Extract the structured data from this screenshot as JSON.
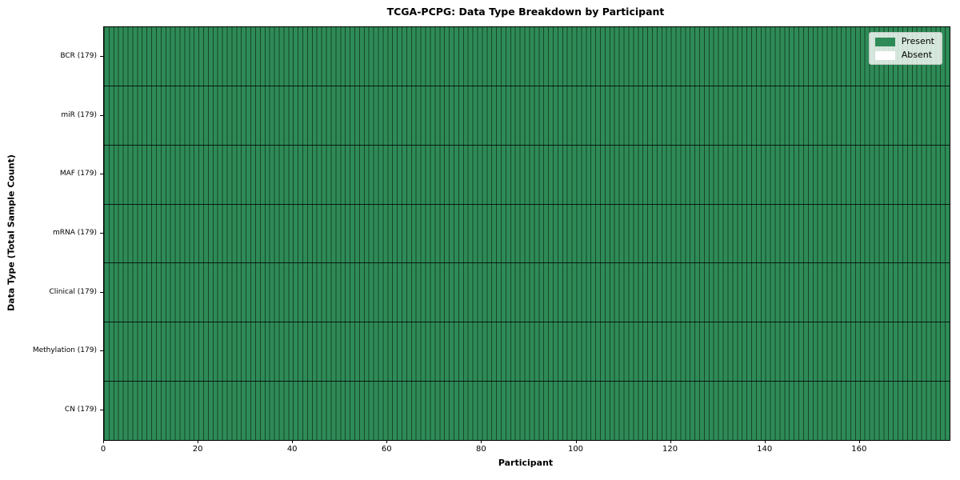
{
  "chart_data": {
    "type": "heatmap",
    "title": "TCGA-PCPG: Data Type Breakdown by Participant",
    "xlabel": "Participant",
    "ylabel": "Data Type (Total Sample Count)",
    "n_participants": 179,
    "x_axis": {
      "min": 0,
      "max": 179,
      "ticks": [
        0,
        20,
        40,
        60,
        80,
        100,
        120,
        140,
        160
      ]
    },
    "rows": [
      {
        "name": "BCR",
        "label": "BCR (179)",
        "total_samples": 179,
        "present": 179,
        "absent": 0
      },
      {
        "name": "miR",
        "label": "miR (179)",
        "total_samples": 179,
        "present": 179,
        "absent": 0
      },
      {
        "name": "MAF",
        "label": "MAF (179)",
        "total_samples": 179,
        "present": 179,
        "absent": 0
      },
      {
        "name": "mRNA",
        "label": "mRNA (179)",
        "total_samples": 179,
        "present": 179,
        "absent": 0
      },
      {
        "name": "Clinical",
        "label": "Clinical (179)",
        "total_samples": 179,
        "present": 179,
        "absent": 0
      },
      {
        "name": "Methylation",
        "label": "Methylation (179)",
        "total_samples": 179,
        "present": 179,
        "absent": 0
      },
      {
        "name": "CN",
        "label": "CN (179)",
        "total_samples": 179,
        "present": 179,
        "absent": 0
      }
    ],
    "legend": {
      "position": "upper right",
      "items": [
        {
          "label": "Present",
          "color": "#2e8b57"
        },
        {
          "label": "Absent",
          "color": "#ffffff"
        }
      ]
    },
    "colors": {
      "present": "#2e8b57",
      "absent": "#ffffff",
      "cell_edge": "rgba(0,0,0,0.5)",
      "row_separator": "rgba(0,0,0,0.8)",
      "spine": "#000000",
      "text": "#000000"
    }
  }
}
